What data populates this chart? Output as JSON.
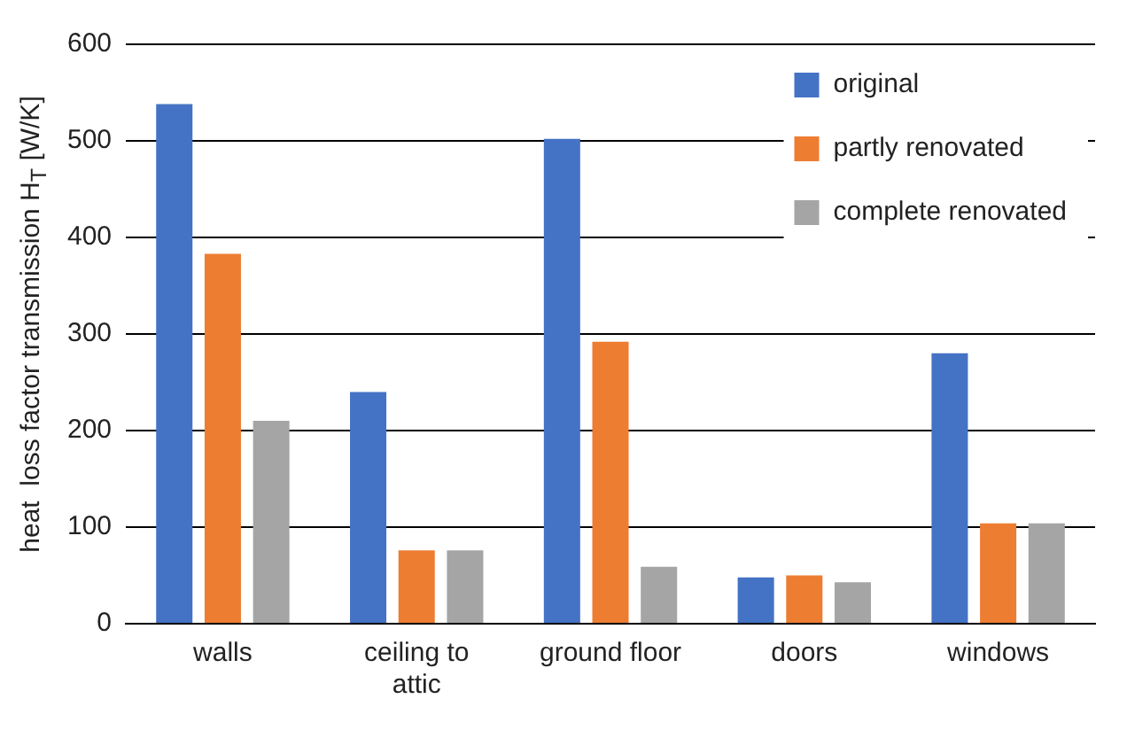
{
  "chart_data": {
    "type": "bar",
    "ylabel": "heat  loss factor transmission H$_{T}$ [W/K]",
    "categories": [
      "walls",
      "ceiling to attic",
      "ground floor",
      "doors",
      "windows"
    ],
    "series": [
      {
        "name": "original",
        "color": "#4472c4",
        "values": [
          538,
          240,
          502,
          48,
          280
        ]
      },
      {
        "name": "partly renovated",
        "color": "#ed7d31",
        "values": [
          383,
          76,
          292,
          50,
          104
        ]
      },
      {
        "name": "complete renovated",
        "color": "#a5a5a5",
        "values": [
          210,
          76,
          59,
          43,
          104
        ]
      }
    ],
    "ylim": [
      0,
      600
    ],
    "yticks": [
      0,
      100,
      200,
      300,
      400,
      500,
      600
    ],
    "grid": "y",
    "legend": "top right"
  }
}
